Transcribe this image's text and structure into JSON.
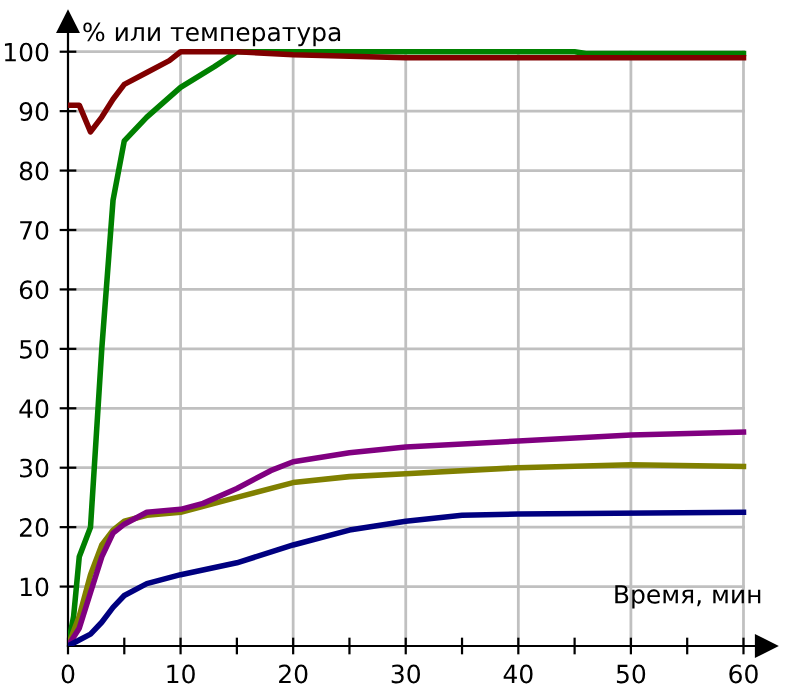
{
  "chart_data": {
    "type": "line",
    "xlabel": "Время, мин",
    "ylabel": "% или температура",
    "xlim": [
      0,
      62
    ],
    "ylim": [
      0,
      105
    ],
    "xticks": [
      0,
      {
        "value": 5,
        "label": null
      },
      10,
      {
        "value": 15,
        "label": null
      },
      20,
      {
        "value": 25,
        "label": null
      },
      30,
      {
        "value": 35,
        "label": null
      },
      40,
      {
        "value": 45,
        "label": null
      },
      50,
      {
        "value": 55,
        "label": null
      },
      60
    ],
    "yticks": [
      10,
      20,
      30,
      40,
      50,
      60,
      70,
      80,
      90,
      100
    ],
    "grid": true,
    "legend": false,
    "marker": "none",
    "line_style": "solid",
    "series": [
      {
        "color": "#008000",
        "x": [
          0,
          0.5,
          1,
          2,
          3,
          4,
          5,
          7,
          10,
          13,
          15,
          27,
          45,
          46,
          60
        ],
        "values": [
          0,
          5,
          15,
          20,
          50,
          75,
          85,
          89,
          94,
          97.5,
          100,
          100,
          100,
          99.7,
          99.7
        ]
      },
      {
        "color": "#800000",
        "x": [
          0,
          1,
          2,
          3,
          4,
          5,
          7,
          9,
          10,
          15,
          20,
          30,
          60
        ],
        "values": [
          91,
          91,
          86.5,
          89,
          92,
          94.5,
          96.5,
          98.5,
          100,
          100,
          99.5,
          99,
          99
        ]
      },
      {
        "color": "#808000",
        "x": [
          0,
          1,
          2,
          3,
          4,
          5,
          7,
          10,
          15,
          20,
          25,
          30,
          40,
          50,
          60
        ],
        "values": [
          0,
          5,
          12,
          17,
          19.5,
          21,
          22,
          22.5,
          25,
          27.5,
          28.5,
          29,
          30,
          30.5,
          30.2
        ]
      },
      {
        "color": "#800080",
        "x": [
          0,
          1,
          2,
          3,
          4,
          5,
          7,
          10,
          12,
          15,
          18,
          20,
          25,
          30,
          40,
          50,
          60
        ],
        "values": [
          0,
          3,
          9,
          15,
          19,
          20.5,
          22.5,
          23,
          24,
          26.5,
          29.5,
          31,
          32.5,
          33.5,
          34.5,
          35.5,
          36
        ]
      },
      {
        "color": "#000080",
        "x": [
          0,
          1,
          2,
          3,
          4,
          5,
          7,
          10,
          15,
          20,
          25,
          30,
          35,
          40,
          60
        ],
        "values": [
          0,
          1,
          2,
          4,
          6.5,
          8.5,
          10.5,
          12,
          14,
          17,
          19.5,
          21,
          22,
          22.2,
          22.5
        ]
      }
    ]
  }
}
